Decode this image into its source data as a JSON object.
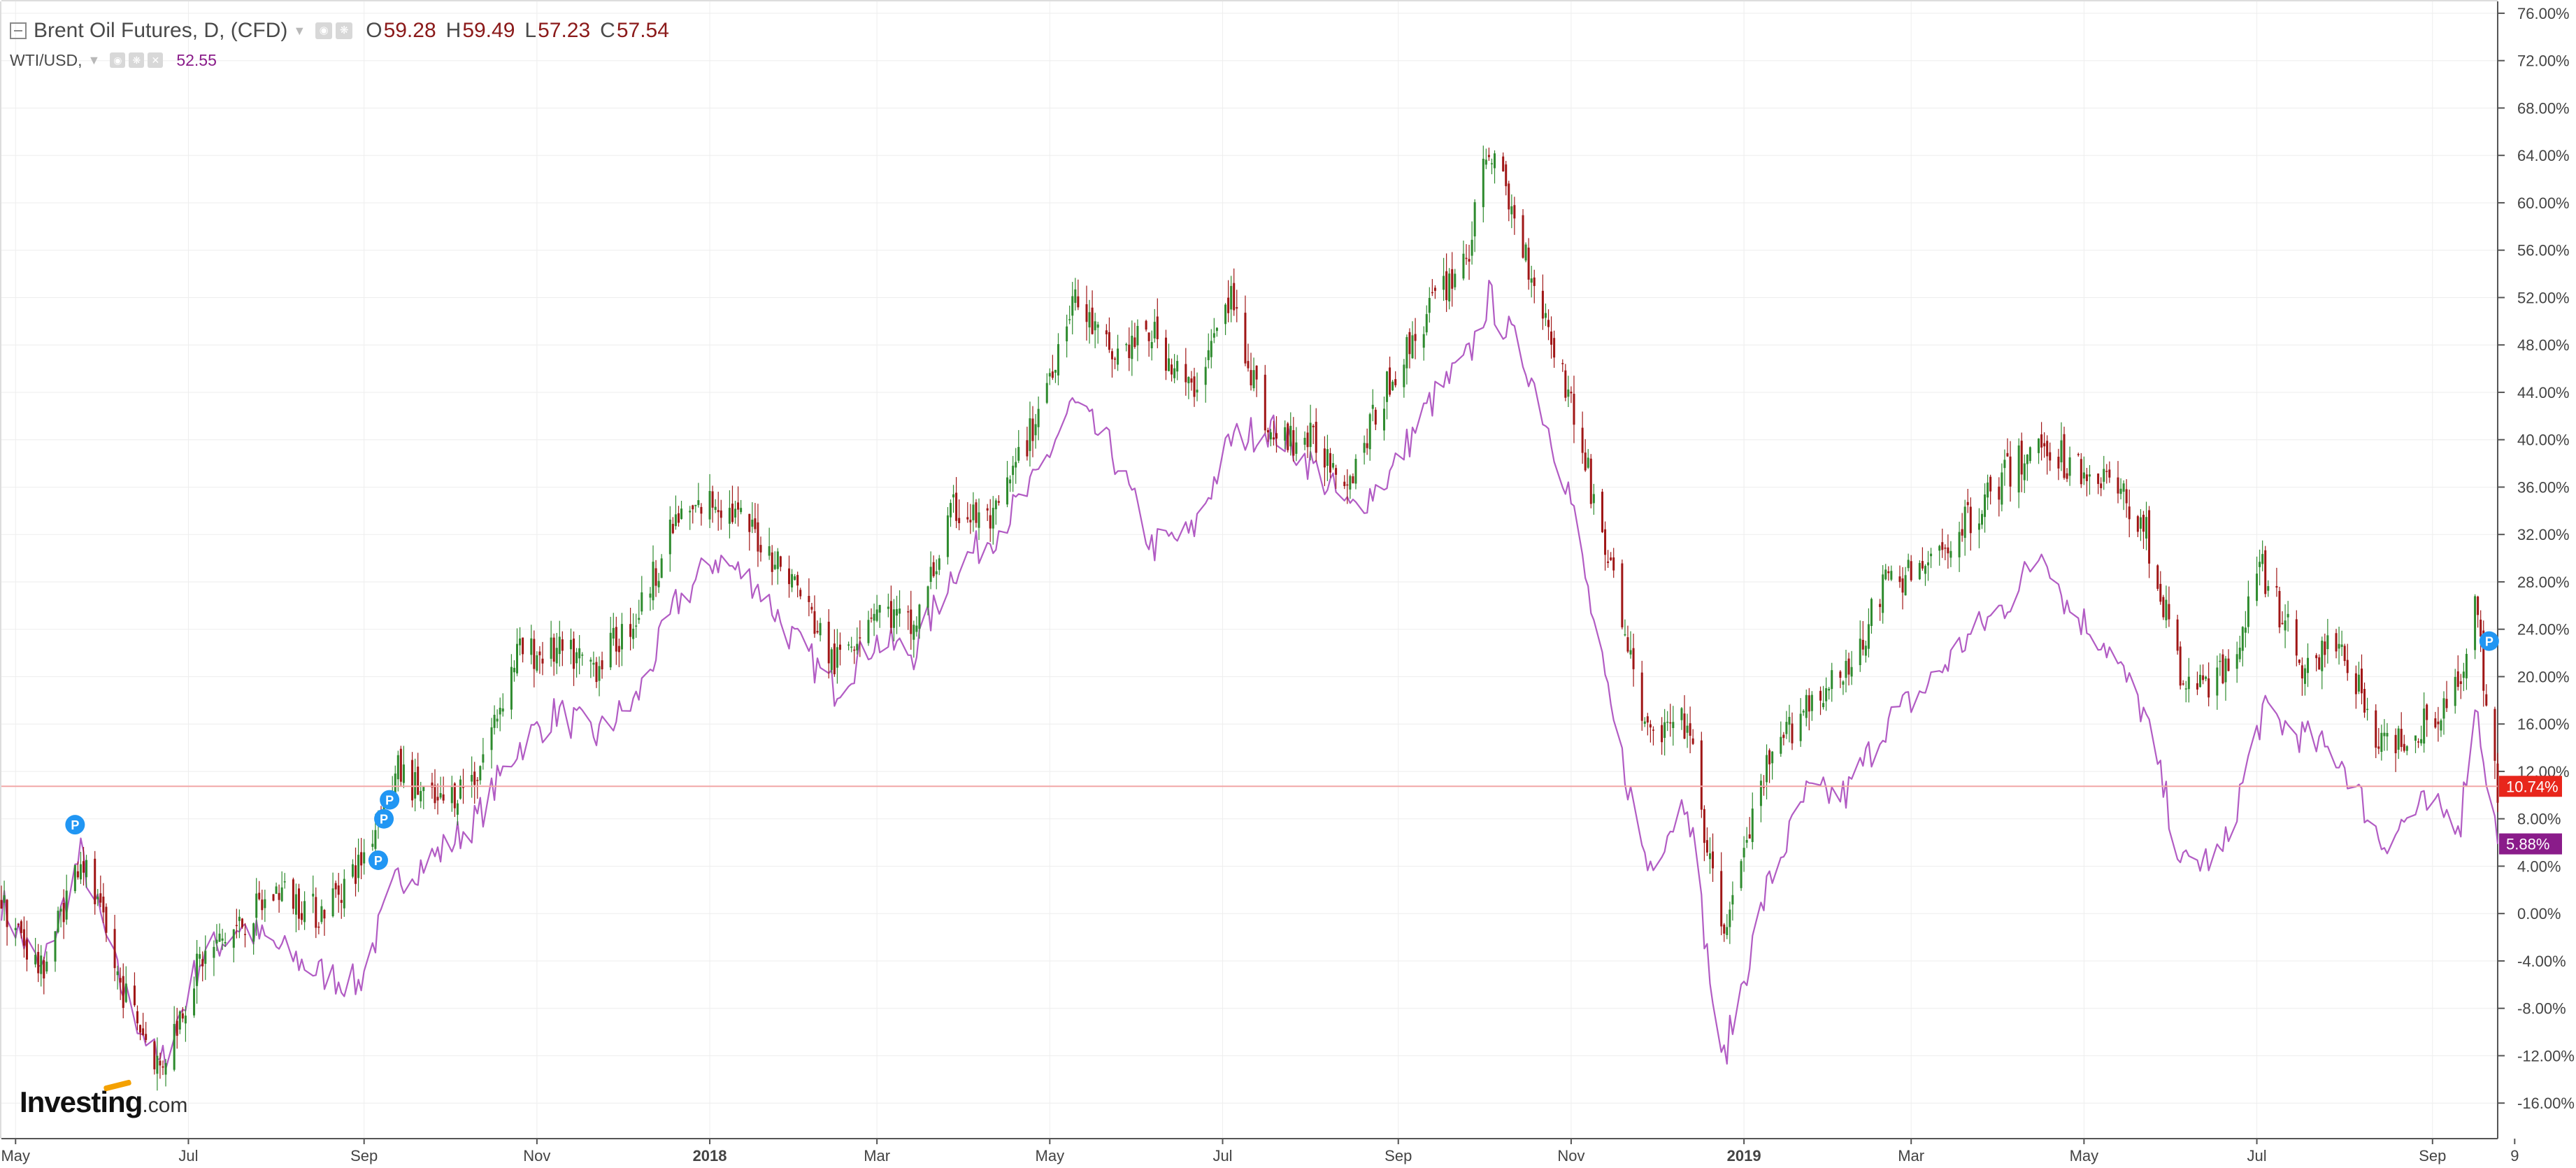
{
  "header": {
    "symbol": "Brent Oil Futures, D, (CFD)",
    "open_label": "O",
    "open": "59.28",
    "high_label": "H",
    "high": "59.49",
    "low_label": "L",
    "low": "57.23",
    "close_label": "C",
    "close": "57.54",
    "compare_symbol": "WTI/USD,",
    "compare_value": "52.55"
  },
  "logo": {
    "brand": "Investing",
    "suffix": ".com"
  },
  "colors": {
    "up_candle": "#2e8b2e",
    "down_candle": "#a01616",
    "compare_line": "#b25cc4",
    "price_line": "#f2a7a7",
    "brent_badge": "#e8261c",
    "wti_badge": "#8a1c8a",
    "event_marker": "#2196f3"
  },
  "chart_data": {
    "type": "line",
    "title": "Brent Oil Futures, D, (CFD)",
    "xlabel": "",
    "ylabel": "",
    "x_ticks": [
      "May",
      "Jul",
      "Sep",
      "Nov",
      "2018",
      "Mar",
      "May",
      "Jul",
      "Sep",
      "Nov",
      "2019",
      "Mar",
      "May",
      "Jul",
      "Sep",
      "9"
    ],
    "y_ticks": [
      "76.00%",
      "72.00%",
      "68.00%",
      "64.00%",
      "60.00%",
      "56.00%",
      "52.00%",
      "48.00%",
      "44.00%",
      "40.00%",
      "36.00%",
      "32.00%",
      "28.00%",
      "24.00%",
      "20.00%",
      "16.00%",
      "12.00%",
      "8.00%",
      "4.00%",
      "0.00%",
      "-4.00%",
      "-8.00%",
      "-12.00%",
      "-16.00%"
    ],
    "ylim": [
      -19,
      77
    ],
    "x_range": [
      "2017-04-26",
      "2019-09-24"
    ],
    "y_unit": "% change",
    "grid": true,
    "last_value_badges": [
      "10.74%",
      "5.88%"
    ],
    "event_marker_label": "P",
    "event_markers": [
      {
        "date": "2017-05-22",
        "y": 7.5
      },
      {
        "date": "2017-09-06",
        "y": 4.5
      },
      {
        "date": "2017-09-08",
        "y": 8.0
      },
      {
        "date": "2017-09-10",
        "y": 9.6
      },
      {
        "date": "2019-09-21",
        "y": 23.0
      }
    ],
    "series": [
      {
        "name": "Brent Oil Futures, D, (CFD)",
        "style": "candlestick",
        "dates": [
          "2017-04-26",
          "2017-05-10",
          "2017-05-24",
          "2017-06-07",
          "2017-06-21",
          "2017-07-05",
          "2017-07-19",
          "2017-08-02",
          "2017-08-16",
          "2017-08-30",
          "2017-09-13",
          "2017-09-27",
          "2017-10-11",
          "2017-10-25",
          "2017-11-08",
          "2017-11-22",
          "2017-12-06",
          "2017-12-20",
          "2018-01-03",
          "2018-01-17",
          "2018-01-31",
          "2018-02-14",
          "2018-02-28",
          "2018-03-14",
          "2018-03-28",
          "2018-04-11",
          "2018-04-25",
          "2018-05-09",
          "2018-05-23",
          "2018-06-06",
          "2018-06-20",
          "2018-07-04",
          "2018-07-18",
          "2018-08-01",
          "2018-08-15",
          "2018-08-29",
          "2018-09-12",
          "2018-09-26",
          "2018-10-03",
          "2018-10-17",
          "2018-10-31",
          "2018-11-14",
          "2018-11-28",
          "2018-12-12",
          "2018-12-24",
          "2019-01-09",
          "2019-01-23",
          "2019-02-06",
          "2019-02-20",
          "2019-03-06",
          "2019-03-20",
          "2019-04-03",
          "2019-04-17",
          "2019-04-25",
          "2019-05-08",
          "2019-05-22",
          "2019-06-05",
          "2019-06-19",
          "2019-07-03",
          "2019-07-17",
          "2019-07-31",
          "2019-08-14",
          "2019-08-28",
          "2019-09-11",
          "2019-09-16",
          "2019-09-24"
        ],
        "values": [
          1.0,
          -5.0,
          5.0,
          -6.0,
          -13.0,
          -4.0,
          -1.0,
          2.0,
          0.0,
          4.0,
          12.0,
          9.0,
          12.0,
          22.0,
          22.0,
          21.0,
          25.0,
          33.0,
          35.0,
          32.0,
          28.0,
          21.0,
          26.0,
          24.0,
          34.0,
          33.0,
          41.0,
          52.0,
          47.0,
          49.0,
          44.0,
          52.0,
          40.0,
          40.0,
          37.0,
          45.0,
          51.0,
          56.0,
          65.0,
          55.0,
          44.0,
          30.0,
          15.0,
          16.0,
          -2.0,
          12.0,
          18.0,
          20.0,
          28.0,
          29.0,
          33.0,
          37.0,
          40.0,
          38.0,
          37.0,
          33.0,
          19.0,
          20.0,
          29.0,
          21.0,
          23.0,
          14.0,
          16.0,
          19.0,
          26.0,
          10.74
        ]
      },
      {
        "name": "WTI/USD,",
        "style": "line",
        "dates": [
          "2017-04-26",
          "2017-05-10",
          "2017-05-24",
          "2017-06-07",
          "2017-06-21",
          "2017-07-05",
          "2017-07-19",
          "2017-08-02",
          "2017-08-16",
          "2017-08-30",
          "2017-09-13",
          "2017-09-27",
          "2017-10-11",
          "2017-10-25",
          "2017-11-08",
          "2017-11-22",
          "2017-12-06",
          "2017-12-20",
          "2018-01-03",
          "2018-01-17",
          "2018-01-31",
          "2018-02-14",
          "2018-02-28",
          "2018-03-14",
          "2018-03-28",
          "2018-04-11",
          "2018-04-25",
          "2018-05-09",
          "2018-05-23",
          "2018-06-06",
          "2018-06-20",
          "2018-07-04",
          "2018-07-18",
          "2018-08-01",
          "2018-08-15",
          "2018-08-29",
          "2018-09-12",
          "2018-09-26",
          "2018-10-03",
          "2018-10-17",
          "2018-10-31",
          "2018-11-14",
          "2018-11-28",
          "2018-12-12",
          "2018-12-24",
          "2019-01-09",
          "2019-01-23",
          "2019-02-06",
          "2019-02-20",
          "2019-03-06",
          "2019-03-20",
          "2019-04-03",
          "2019-04-17",
          "2019-04-25",
          "2019-05-08",
          "2019-05-22",
          "2019-06-05",
          "2019-06-19",
          "2019-07-03",
          "2019-07-17",
          "2019-07-31",
          "2019-08-14",
          "2019-08-28",
          "2019-09-11",
          "2019-09-16",
          "2019-09-24"
        ],
        "values": [
          1.0,
          -5.0,
          5.0,
          -6.0,
          -13.0,
          -4.0,
          -1.0,
          -3.0,
          -5.0,
          -6.0,
          3.0,
          5.0,
          8.0,
          14.0,
          17.0,
          15.0,
          18.0,
          26.0,
          30.0,
          28.0,
          23.0,
          19.0,
          23.0,
          22.0,
          29.0,
          32.0,
          36.0,
          43.0,
          39.0,
          31.0,
          32.0,
          40.0,
          41.0,
          38.0,
          34.0,
          37.0,
          43.0,
          47.0,
          52.0,
          46.0,
          36.0,
          18.0,
          4.0,
          10.0,
          -13.0,
          2.0,
          10.0,
          10.0,
          16.0,
          19.0,
          23.0,
          26.0,
          31.0,
          26.0,
          23.0,
          17.0,
          4.0,
          5.0,
          17.0,
          15.0,
          13.0,
          6.0,
          9.0,
          8.0,
          18.0,
          5.88
        ]
      }
    ]
  }
}
